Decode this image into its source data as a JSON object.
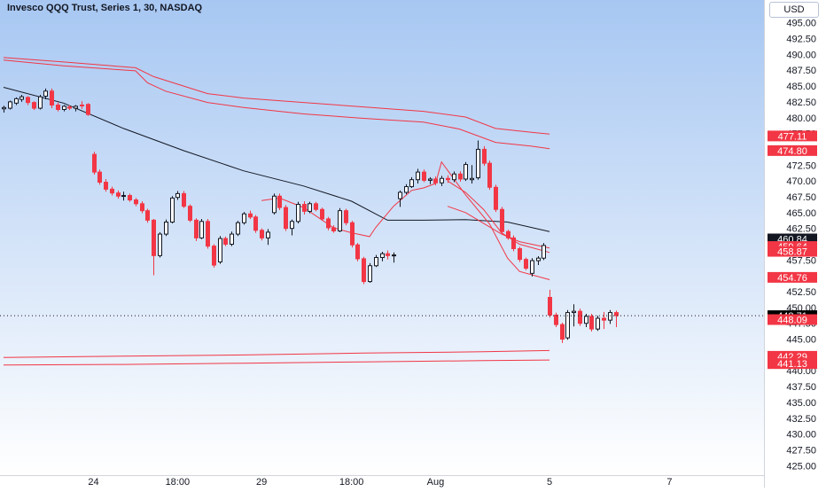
{
  "header": {
    "title": "Invesco QQQ Trust, Series 1, 30, NASDAQ",
    "currency": "USD"
  },
  "chart_data": {
    "type": "candlestick",
    "title": "Invesco QQQ Trust, Series 1, 30, NASDAQ",
    "ylim": [
      423.5,
      498.6
    ],
    "grid": false,
    "y_ticks": [
      "495.00",
      "492.50",
      "490.00",
      "487.50",
      "485.00",
      "482.50",
      "480.00",
      "477.50",
      "475.00",
      "472.50",
      "470.00",
      "467.50",
      "465.00",
      "462.50",
      "460.00",
      "457.50",
      "455.00",
      "452.50",
      "450.00",
      "447.50",
      "445.00",
      "442.50",
      "440.00",
      "437.50",
      "435.00",
      "432.50",
      "430.00",
      "427.50",
      "425.00"
    ],
    "x_ticks": [
      {
        "label": "24",
        "i": 15
      },
      {
        "label": "18:00",
        "i": 29
      },
      {
        "label": "29",
        "i": 43
      },
      {
        "label": "18:00",
        "i": 58
      },
      {
        "label": "Aug",
        "i": 72
      },
      {
        "label": "5",
        "i": 91
      },
      {
        "label": "7",
        "i": 111
      }
    ],
    "candles": [
      [
        481.4,
        481.9,
        480.8,
        481.6
      ],
      [
        481.5,
        482.7,
        481.3,
        482.5
      ],
      [
        482.3,
        483.2,
        482.0,
        483.0
      ],
      [
        482.9,
        483.6,
        482.5,
        483.3
      ],
      [
        483.2,
        483.4,
        482.0,
        482.4
      ],
      [
        482.4,
        482.6,
        481.2,
        481.5
      ],
      [
        481.5,
        483.6,
        481.3,
        483.3
      ],
      [
        483.4,
        484.6,
        482.9,
        484.2
      ],
      [
        484.2,
        484.6,
        481.5,
        482.0
      ],
      [
        482.0,
        482.4,
        481.0,
        481.3
      ],
      [
        481.3,
        482.0,
        481.0,
        481.8
      ],
      [
        481.7,
        482.0,
        481.2,
        481.5
      ],
      [
        481.5,
        482.0,
        481.0,
        481.8
      ],
      [
        482.0,
        482.6,
        481.4,
        481.9
      ],
      [
        482.1,
        482.3,
        480.3,
        480.5
      ],
      [
        474.2,
        474.6,
        471.0,
        471.4
      ],
      [
        471.4,
        471.8,
        469.4,
        469.8
      ],
      [
        469.8,
        470.3,
        468.3,
        468.7
      ],
      [
        468.7,
        469.1,
        467.7,
        468.1
      ],
      [
        468.1,
        468.5,
        467.2,
        467.6
      ],
      [
        467.6,
        468.3,
        466.9,
        467.7
      ],
      [
        467.7,
        468.0,
        466.7,
        467.0
      ],
      [
        467.0,
        467.3,
        466.0,
        466.4
      ],
      [
        466.4,
        466.8,
        464.9,
        465.3
      ],
      [
        465.3,
        465.6,
        463.4,
        463.8
      ],
      [
        463.8,
        464.0,
        455.1,
        458.2
      ],
      [
        458.2,
        461.9,
        457.9,
        461.6
      ],
      [
        461.6,
        463.9,
        461.3,
        463.5
      ],
      [
        463.5,
        467.6,
        463.3,
        467.3
      ],
      [
        467.4,
        468.4,
        467.0,
        468.0
      ],
      [
        468.0,
        468.4,
        465.7,
        466.0
      ],
      [
        466.0,
        466.3,
        463.5,
        463.8
      ],
      [
        463.8,
        464.1,
        460.5,
        461.0
      ],
      [
        461.0,
        464.0,
        460.8,
        463.6
      ],
      [
        463.6,
        464.0,
        459.3,
        459.7
      ],
      [
        459.7,
        460.0,
        456.3,
        456.7
      ],
      [
        457.2,
        461.3,
        456.9,
        460.9
      ],
      [
        460.9,
        461.2,
        459.7,
        460.0
      ],
      [
        460.0,
        462.0,
        459.7,
        461.6
      ],
      [
        461.6,
        463.7,
        461.3,
        463.4
      ],
      [
        463.4,
        465.1,
        463.1,
        464.8
      ],
      [
        464.8,
        465.3,
        464.0,
        464.3
      ],
      [
        464.3,
        464.6,
        461.8,
        462.2
      ],
      [
        462.2,
        462.5,
        460.6,
        461.0
      ],
      [
        461.0,
        462.4,
        459.9,
        461.9
      ],
      [
        465.0,
        468.0,
        464.7,
        467.6
      ],
      [
        467.6,
        468.0,
        465.4,
        465.8
      ],
      [
        465.8,
        466.2,
        462.1,
        462.5
      ],
      [
        462.5,
        463.9,
        461.4,
        463.6
      ],
      [
        463.6,
        466.7,
        463.3,
        466.3
      ],
      [
        466.3,
        466.8,
        464.7,
        465.2
      ],
      [
        465.2,
        466.7,
        464.9,
        466.4
      ],
      [
        466.4,
        466.7,
        465.2,
        465.5
      ],
      [
        465.5,
        465.8,
        463.7,
        464.0
      ],
      [
        464.0,
        464.3,
        462.2,
        462.6
      ],
      [
        462.6,
        463.0,
        461.8,
        462.1
      ],
      [
        462.1,
        465.7,
        461.9,
        465.3
      ],
      [
        465.3,
        465.6,
        463.0,
        463.4
      ],
      [
        463.4,
        463.7,
        459.5,
        459.9
      ],
      [
        459.9,
        460.2,
        457.3,
        457.7
      ],
      [
        457.7,
        458.0,
        453.7,
        454.1
      ],
      [
        454.1,
        457.0,
        453.9,
        456.6
      ],
      [
        456.6,
        458.3,
        456.4,
        457.9
      ],
      [
        457.9,
        458.8,
        457.3,
        458.5
      ],
      [
        458.5,
        459.0,
        457.6,
        458.2
      ],
      [
        458.2,
        458.7,
        457.1,
        458.3
      ],
      [
        467.2,
        468.5,
        465.9,
        468.2
      ],
      [
        468.2,
        469.5,
        467.9,
        469.1
      ],
      [
        469.1,
        470.6,
        468.9,
        470.2
      ],
      [
        470.2,
        471.9,
        469.6,
        471.4
      ],
      [
        471.4,
        471.8,
        469.8,
        470.1
      ],
      [
        470.1,
        470.6,
        469.5,
        470.3
      ],
      [
        470.3,
        470.7,
        469.3,
        469.7
      ],
      [
        469.7,
        470.8,
        469.2,
        470.4
      ],
      [
        470.4,
        470.9,
        469.7,
        470.2
      ],
      [
        470.2,
        471.5,
        469.8,
        471.1
      ],
      [
        471.1,
        471.5,
        469.9,
        470.3
      ],
      [
        470.3,
        473.0,
        470.0,
        472.6
      ],
      [
        470.2,
        472.5,
        469.6,
        470.4
      ],
      [
        470.5,
        476.4,
        470.2,
        475.0
      ],
      [
        475.0,
        475.5,
        472.4,
        472.8
      ],
      [
        472.8,
        473.2,
        468.6,
        469.0
      ],
      [
        469.0,
        469.4,
        465.1,
        465.5
      ],
      [
        465.5,
        465.9,
        461.6,
        462.0
      ],
      [
        462.0,
        462.3,
        460.7,
        461.0
      ],
      [
        461.0,
        461.4,
        458.9,
        459.3
      ],
      [
        459.3,
        459.6,
        457.2,
        457.6
      ],
      [
        457.6,
        457.9,
        455.9,
        456.2
      ],
      [
        455.4,
        457.8,
        454.9,
        457.4
      ],
      [
        457.4,
        458.1,
        456.7,
        457.8
      ],
      [
        457.8,
        460.2,
        457.5,
        459.8
      ],
      [
        451.6,
        452.8,
        448.4,
        448.8
      ],
      [
        448.8,
        449.2,
        446.9,
        447.3
      ],
      [
        447.3,
        447.6,
        444.4,
        445.0
      ],
      [
        445.2,
        449.6,
        444.9,
        449.2
      ],
      [
        449.2,
        450.5,
        447.0,
        449.4
      ],
      [
        449.4,
        449.8,
        447.1,
        447.5
      ],
      [
        447.5,
        449.0,
        446.9,
        448.6
      ],
      [
        448.6,
        449.0,
        446.2,
        446.6
      ],
      [
        446.6,
        448.7,
        446.3,
        448.3
      ],
      [
        448.3,
        449.3,
        446.6,
        448.0
      ],
      [
        448.0,
        449.6,
        447.4,
        449.2
      ],
      [
        449.2,
        449.5,
        446.9,
        448.71
      ]
    ],
    "series": [
      {
        "color": "#131722",
        "values": [
          [
            0,
            484.8
          ],
          [
            10,
            482.3
          ],
          [
            20,
            478.3
          ],
          [
            30,
            474.8
          ],
          [
            40,
            471.6
          ],
          [
            50,
            469.2
          ],
          [
            58,
            466.8
          ],
          [
            64,
            463.8
          ],
          [
            70,
            463.8
          ],
          [
            77,
            463.9
          ],
          [
            84,
            463.5
          ],
          [
            91,
            462.0
          ]
        ]
      },
      {
        "color": "#f23645",
        "values": [
          [
            0,
            489.1
          ],
          [
            10,
            488.2
          ],
          [
            22,
            487.4
          ],
          [
            24,
            485.5
          ],
          [
            27,
            484.2
          ],
          [
            34,
            482.4
          ],
          [
            40,
            481.6
          ],
          [
            50,
            480.6
          ],
          [
            60,
            479.9
          ],
          [
            70,
            479.3
          ],
          [
            76,
            478.2
          ],
          [
            82,
            476.1
          ],
          [
            88,
            475.5
          ],
          [
            91,
            475.1
          ]
        ]
      },
      {
        "color": "#f23645",
        "values": [
          [
            0,
            489.5
          ],
          [
            10,
            488.8
          ],
          [
            22,
            487.9
          ],
          [
            25,
            486.5
          ],
          [
            34,
            483.8
          ],
          [
            40,
            483.1
          ],
          [
            50,
            482.4
          ],
          [
            60,
            481.7
          ],
          [
            70,
            481.0
          ],
          [
            77,
            480.1
          ],
          [
            82,
            478.3
          ],
          [
            88,
            477.7
          ],
          [
            91,
            477.4
          ]
        ]
      },
      {
        "color": "#f23645",
        "values": [
          [
            0,
            440.9
          ],
          [
            20,
            441.0
          ],
          [
            40,
            441.2
          ],
          [
            60,
            441.4
          ],
          [
            80,
            441.6
          ],
          [
            91,
            441.7
          ]
        ]
      },
      {
        "color": "#f23645",
        "values": [
          [
            0,
            442.1
          ],
          [
            20,
            442.3
          ],
          [
            40,
            442.5
          ],
          [
            60,
            442.8
          ],
          [
            80,
            443.0
          ],
          [
            91,
            443.2
          ]
        ]
      },
      {
        "color": "#f23645",
        "values": [
          [
            43,
            466.9
          ],
          [
            46,
            467.3
          ],
          [
            50,
            465.8
          ],
          [
            55,
            462.6
          ],
          [
            58,
            461.8
          ],
          [
            61,
            461.2
          ],
          [
            62,
            462.6
          ],
          [
            65,
            466.0
          ],
          [
            68,
            468.5
          ],
          [
            70,
            468.9
          ],
          [
            72,
            469.6
          ],
          [
            73,
            473.0
          ],
          [
            77,
            467.8
          ],
          [
            81,
            463.2
          ],
          [
            84,
            457.8
          ],
          [
            86,
            455.7
          ],
          [
            91,
            454.4
          ]
        ]
      },
      {
        "color": "#f23645",
        "values": [
          [
            74,
            470.0
          ],
          [
            77,
            468.2
          ],
          [
            80,
            465.5
          ],
          [
            83,
            461.8
          ],
          [
            86,
            460.0
          ],
          [
            91,
            458.7
          ]
        ]
      },
      {
        "color": "#f23645",
        "values": [
          [
            74,
            466.0
          ],
          [
            77,
            465.0
          ],
          [
            80,
            463.3
          ],
          [
            83,
            461.6
          ],
          [
            86,
            460.4
          ],
          [
            91,
            459.4
          ]
        ]
      }
    ],
    "price_labels": [
      {
        "text": "477.11",
        "value": 477.11,
        "bg": "#f23645"
      },
      {
        "text": "474.80",
        "value": 474.8,
        "bg": "#f23645"
      },
      {
        "text": "460.84",
        "value": 460.84,
        "bg": "#131722"
      },
      {
        "text": "459.64",
        "value": 459.64,
        "bg": "#f23645"
      },
      {
        "text": "458.87",
        "value": 458.87,
        "bg": "#f23645"
      },
      {
        "text": "454.76",
        "value": 454.76,
        "bg": "#f23645"
      },
      {
        "text": "448.71",
        "value": 448.71,
        "bg": "#000000"
      },
      {
        "text": "448.09",
        "value": 448.09,
        "bg": "#f23645"
      },
      {
        "text": "442.29",
        "value": 442.29,
        "bg": "#f23645"
      },
      {
        "text": "441.13",
        "value": 441.13,
        "bg": "#f23645"
      }
    ],
    "last_price": 448.71,
    "colors": {
      "up": "#ffffff",
      "down": "#f23645",
      "outline": "#131722",
      "grad_top": "#a7c7f2",
      "grad_bottom": "#ffffff"
    }
  }
}
